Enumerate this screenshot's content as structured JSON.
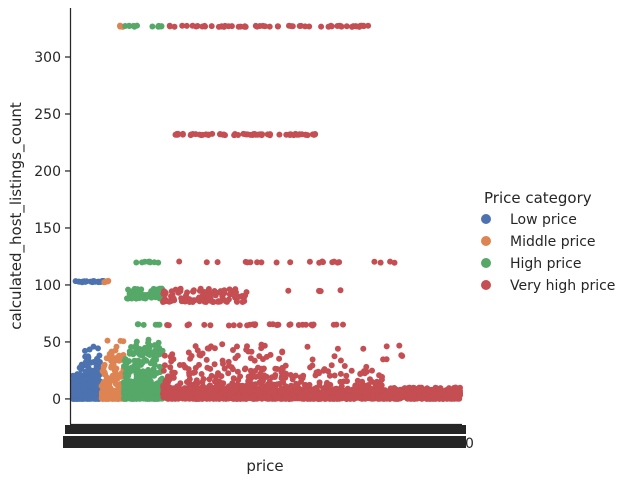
{
  "chart_data": {
    "type": "scatter",
    "subtype": "strip",
    "title": "",
    "xlabel": "price",
    "ylabel": "calculated_host_listings_count",
    "ylim": [
      -22,
      343
    ],
    "yticks": [
      0,
      50,
      100,
      150,
      200,
      250,
      300
    ],
    "grid": false,
    "x_tick_labels": "dense unreadable (overlapping) price category labels",
    "legend": {
      "title": "Price category",
      "placement": "right",
      "entries": [
        "Low price",
        "Middle price",
        "High price",
        "Very high price"
      ]
    },
    "series": [
      {
        "name": "Low price",
        "color": "#4c72b0",
        "x_range": [
          0.0,
          0.075
        ],
        "clusters": [
          {
            "x": [
              0.0,
              0.075
            ],
            "y": [
              0,
              8
            ],
            "count": 260
          },
          {
            "x": [
              0.0,
              0.075
            ],
            "y": [
              9,
              22
            ],
            "count": 90
          },
          {
            "x": [
              0.02,
              0.075
            ],
            "y": [
              23,
              47
            ],
            "count": 40
          },
          {
            "x": [
              0.01,
              0.085
            ],
            "y": [
              103,
              103
            ],
            "count": 30
          }
        ]
      },
      {
        "name": "Middle price",
        "color": "#dd8452",
        "x_range": [
          0.075,
          0.135
        ],
        "clusters": [
          {
            "x": [
              0.078,
              0.135
            ],
            "y": [
              0,
              8
            ],
            "count": 160
          },
          {
            "x": [
              0.078,
              0.135
            ],
            "y": [
              9,
              30
            ],
            "count": 50
          },
          {
            "x": [
              0.09,
              0.135
            ],
            "y": [
              33,
              52
            ],
            "count": 25
          },
          {
            "x": [
              0.085,
              0.098
            ],
            "y": [
              103,
              103
            ],
            "count": 5
          },
          {
            "x": [
              0.12,
              0.135
            ],
            "y": [
              327,
              327
            ],
            "count": 4
          }
        ]
      },
      {
        "name": "High price",
        "color": "#55a868",
        "x_range": [
          0.135,
          0.235
        ],
        "clusters": [
          {
            "x": [
              0.135,
              0.235
            ],
            "y": [
              0,
              10
            ],
            "count": 260
          },
          {
            "x": [
              0.135,
              0.235
            ],
            "y": [
              11,
              35
            ],
            "count": 120
          },
          {
            "x": [
              0.15,
              0.235
            ],
            "y": [
              38,
              52
            ],
            "count": 50
          },
          {
            "x": [
              0.16,
              0.235
            ],
            "y": [
              65,
              65
            ],
            "count": 6
          },
          {
            "x": [
              0.135,
              0.235
            ],
            "y": [
              88,
              97
            ],
            "count": 70
          },
          {
            "x": [
              0.16,
              0.24
            ],
            "y": [
              120,
              120
            ],
            "count": 8
          },
          {
            "x": [
              0.135,
              0.235
            ],
            "y": [
              327,
              327
            ],
            "count": 12
          }
        ]
      },
      {
        "name": "Very high price",
        "color": "#c44e52",
        "x_range": [
          0.235,
          1.0
        ],
        "clusters": [
          {
            "x": [
              0.235,
              1.0
            ],
            "y": [
              0,
              10
            ],
            "count": 1300
          },
          {
            "x": [
              0.235,
              0.8
            ],
            "y": [
              11,
              25
            ],
            "count": 170
          },
          {
            "x": [
              0.235,
              0.55
            ],
            "y": [
              26,
              48
            ],
            "count": 70
          },
          {
            "x": [
              0.6,
              0.85
            ],
            "y": [
              26,
              50
            ],
            "count": 18
          },
          {
            "x": [
              0.235,
              0.72
            ],
            "y": [
              65,
              65
            ],
            "count": 30
          },
          {
            "x": [
              0.235,
              0.45
            ],
            "y": [
              85,
              97
            ],
            "count": 100
          },
          {
            "x": [
              0.5,
              0.72
            ],
            "y": [
              95,
              95
            ],
            "count": 5
          },
          {
            "x": [
              0.24,
              0.87
            ],
            "y": [
              120,
              120
            ],
            "count": 22
          },
          {
            "x": [
              0.265,
              0.63
            ],
            "y": [
              232,
              232
            ],
            "count": 65
          },
          {
            "x": [
              0.235,
              0.76
            ],
            "y": [
              327,
              327
            ],
            "count": 60
          }
        ]
      }
    ]
  }
}
